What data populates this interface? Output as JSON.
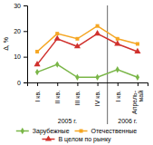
{
  "chart_data": {
    "type": "line",
    "categories": [
      "I кв.",
      "II кв.",
      "III кв.",
      "IV кв.",
      "I кв.",
      "Апрель-\nмай"
    ],
    "category_groups": [
      "2005 г.",
      "2005 г.",
      "2005 г.",
      "2005 г.",
      "2006 г.",
      "2006 г."
    ],
    "series": [
      {
        "name": "Зарубежные",
        "color": "#7ab648",
        "marker": "diamond",
        "values": [
          4,
          7,
          2,
          2,
          5,
          2
        ]
      },
      {
        "name": "Отечественные",
        "color": "#f5a623",
        "marker": "square",
        "values": [
          12,
          19,
          17,
          22,
          17,
          15
        ]
      },
      {
        "name": "В целом по рынку",
        "color": "#d0312d",
        "marker": "triangle",
        "values": [
          7,
          17,
          14,
          19,
          15,
          12
        ]
      }
    ],
    "ylabel": "Δ, %",
    "ylim": [
      0,
      30
    ],
    "yticks": [
      0,
      10,
      20,
      30
    ],
    "grid": false,
    "legend": "bottom"
  }
}
